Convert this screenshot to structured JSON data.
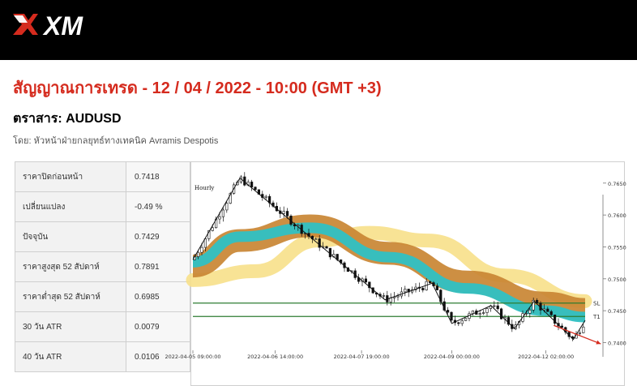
{
  "header": {
    "brand": "XM",
    "logo_icon": "xm-logo-icon",
    "bar_color": "#000000"
  },
  "title": "สัญญาณการเทรด - 12 / 04 / 2022 - 10:00 (GMT +3)",
  "instrument": "ตราสาร: AUDUSD",
  "author": "โดย: หัวหน้าฝ่ายกลยุทธ์ทางเทคนิค Avramis Despotis",
  "accent_color": "#d52b1e",
  "stats": [
    {
      "label": "ราคาปิดก่อนหน้า",
      "value": "0.7418"
    },
    {
      "label": "เปลี่ยนแปลง",
      "value": "-0.49 %"
    },
    {
      "label": "ปัจจุบัน",
      "value": "0.7429"
    },
    {
      "label": "ราคาสูงสุด 52 สัปดาห์",
      "value": "0.7891"
    },
    {
      "label": "ราคาต่ำสุด 52 สัปดาห์",
      "value": "0.6985"
    },
    {
      "label": "30 วัน ATR",
      "value": "0.0079"
    },
    {
      "label": "40 วัน ATR",
      "value": "0.0106"
    }
  ],
  "chart_data": {
    "type": "line",
    "timeframe_label": "Hourly",
    "x_labels": [
      "2022-04-05 09:00:00",
      "2022-04-06 14:00:00",
      "2022-04-07 19:00:00",
      "2022-04-09 00:00:00",
      "2022-04-12 02:00:00"
    ],
    "y_ticks": [
      "0.7650",
      "0.7600",
      "0.7550",
      "0.7500",
      "0.7450",
      "0.7400"
    ],
    "ylim": [
      0.7393,
      0.7665
    ],
    "level_lines": [
      {
        "label": "SL",
        "value": 0.7462,
        "color": "#2e7d32"
      },
      {
        "label": "T1",
        "value": 0.7441,
        "color": "#2e7d32"
      }
    ],
    "series": [
      {
        "role": "price-zigzag",
        "color": "#111111",
        "points": [
          [
            0.0,
            0.753
          ],
          [
            0.12,
            0.7658
          ],
          [
            0.49,
            0.7467
          ],
          [
            0.61,
            0.7493
          ],
          [
            0.66,
            0.743
          ],
          [
            0.76,
            0.7458
          ],
          [
            0.82,
            0.7422
          ],
          [
            0.87,
            0.7465
          ],
          [
            0.97,
            0.7405
          ],
          [
            1.0,
            0.7435
          ]
        ]
      },
      {
        "role": "ribbon-orange",
        "color": "#c98533",
        "points": [
          [
            0.0,
            0.752
          ],
          [
            0.12,
            0.756
          ],
          [
            0.3,
            0.7583
          ],
          [
            0.5,
            0.754
          ],
          [
            0.7,
            0.7495
          ],
          [
            0.9,
            0.7462
          ],
          [
            1.0,
            0.7452
          ]
        ]
      },
      {
        "role": "ribbon-cyan",
        "color": "#2fc1c4",
        "points": [
          [
            0.0,
            0.7526
          ],
          [
            0.12,
            0.7566
          ],
          [
            0.3,
            0.758
          ],
          [
            0.5,
            0.7534
          ],
          [
            0.7,
            0.7485
          ],
          [
            0.9,
            0.745
          ],
          [
            1.0,
            0.744
          ]
        ]
      },
      {
        "role": "ribbon-yellow",
        "color": "#f7e08a",
        "points": [
          [
            0.0,
            0.7498
          ],
          [
            0.16,
            0.7512
          ],
          [
            0.32,
            0.756
          ],
          [
            0.45,
            0.7572
          ],
          [
            0.6,
            0.756
          ],
          [
            0.8,
            0.7505
          ],
          [
            1.0,
            0.7465
          ]
        ]
      },
      {
        "role": "target-arrow",
        "color": "#d52b1e",
        "points": [
          [
            0.92,
            0.7427
          ],
          [
            1.04,
            0.7398
          ]
        ]
      }
    ]
  }
}
